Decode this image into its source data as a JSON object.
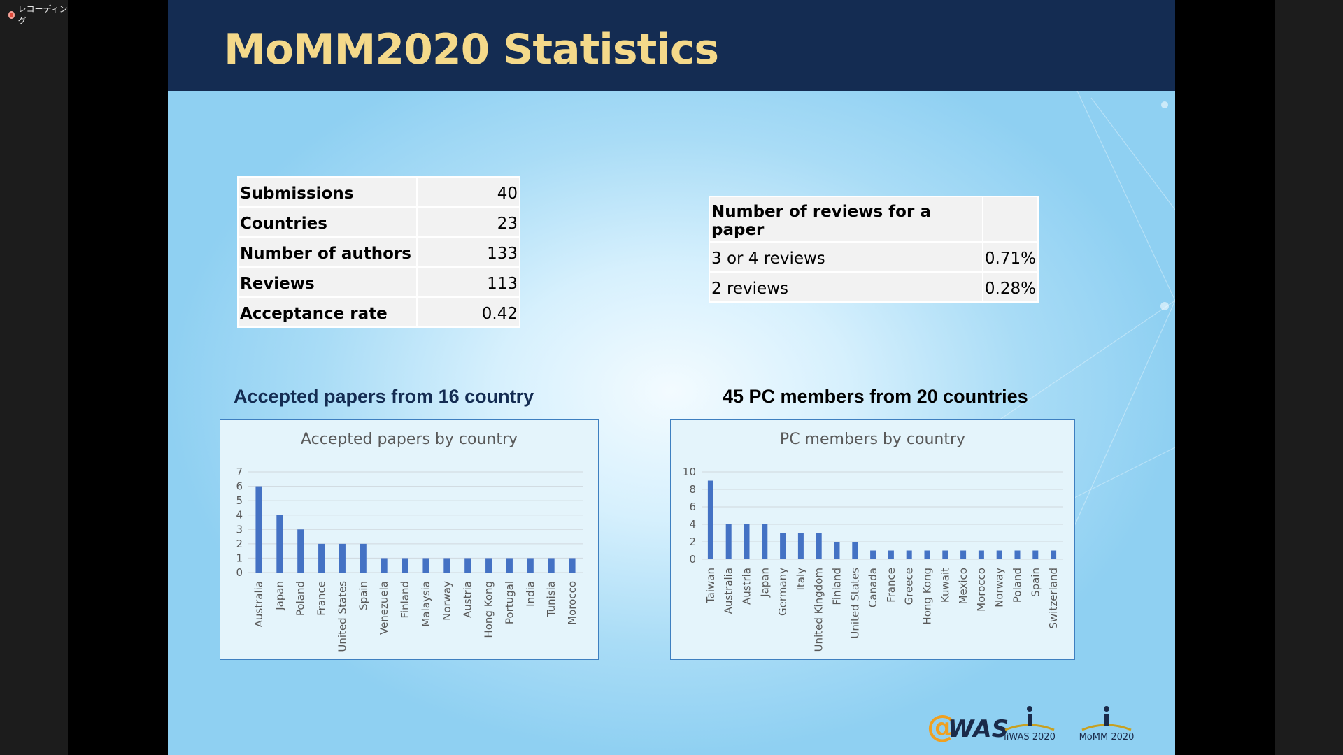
{
  "recording": {
    "label": "レコーディング"
  },
  "slide": {
    "title": "MoMM2020 Statistics",
    "stats_table": [
      {
        "label": "Submissions",
        "value": "40"
      },
      {
        "label": "Countries",
        "value": "23"
      },
      {
        "label": "Number of authors",
        "value": "133"
      },
      {
        "label": "Reviews",
        "value": "113"
      },
      {
        "label": "Acceptance rate",
        "value": "0.42"
      }
    ],
    "reviews_table": {
      "header": "Number of reviews for a paper",
      "rows": [
        {
          "label": "3 or 4 reviews",
          "value": "0.71%"
        },
        {
          "label": "2 reviews",
          "value": "0.28%"
        }
      ]
    },
    "section1_title": "Accepted papers from 16 country",
    "section2_title": "45 PC members from 20 countries",
    "logos": {
      "awas": "@WAS",
      "iiwas": "iiWAS 2020",
      "momm": "MoMM 2020"
    }
  },
  "colors": {
    "bar": "#4472c4",
    "header_bg": "#142c52",
    "title": "#f4d98a"
  },
  "chart_data": [
    {
      "type": "bar",
      "title": "Accepted papers by country",
      "categories": [
        "Australia",
        "Japan",
        "Poland",
        "France",
        "United States",
        "Spain",
        "Venezuela",
        "Finland",
        "Malaysia",
        "Norway",
        "Austria",
        "Hong Kong",
        "Portugal",
        "India",
        "Tunisia",
        "Morocco"
      ],
      "values": [
        6,
        4,
        3,
        2,
        2,
        2,
        1,
        1,
        1,
        1,
        1,
        1,
        1,
        1,
        1,
        1
      ],
      "yticks": [
        "0",
        "1",
        "2",
        "3",
        "4",
        "5",
        "6",
        "7"
      ],
      "ylim": [
        0,
        7
      ],
      "grid": true
    },
    {
      "type": "bar",
      "title": "PC members by country",
      "categories": [
        "Taiwan",
        "Australia",
        "Austria",
        "Japan",
        "Germany",
        "Italy",
        "United Kingdom",
        "Finland",
        "United States",
        "Canada",
        "France",
        "Greece",
        "Hong Kong",
        "Kuwait",
        "Mexico",
        "Morocco",
        "Norway",
        "Poland",
        "Spain",
        "Switzerland"
      ],
      "values": [
        9,
        4,
        4,
        4,
        3,
        3,
        3,
        2,
        2,
        1,
        1,
        1,
        1,
        1,
        1,
        1,
        1,
        1,
        1,
        1
      ],
      "yticks": [
        "0",
        "2",
        "4",
        "6",
        "8",
        "10"
      ],
      "ylim": [
        0,
        10
      ],
      "grid": true
    }
  ]
}
